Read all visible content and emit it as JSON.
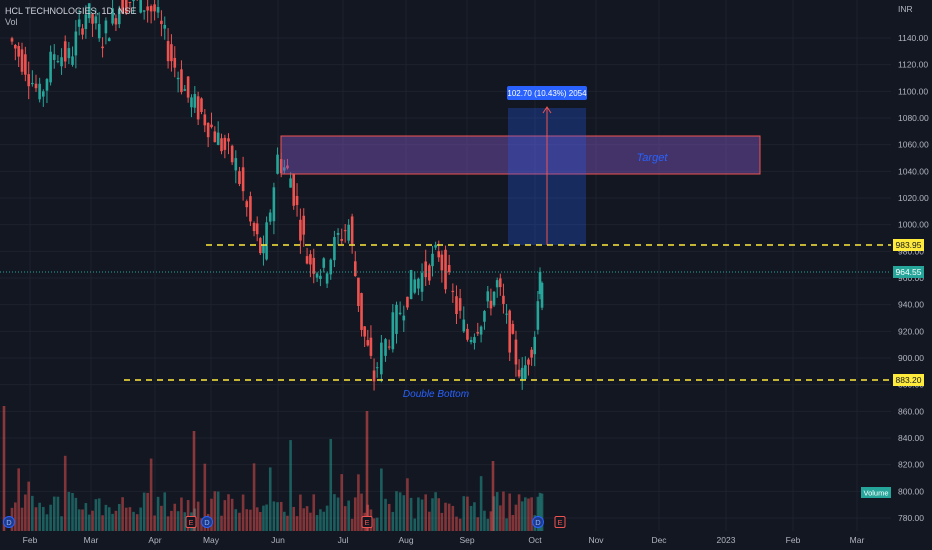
{
  "header": {
    "symbol": "HCL TECHNOLOGIES, 1D, NSE",
    "volume_label": "Vol",
    "currency": "INR"
  },
  "tags": {
    "resistance": "983.95",
    "last_price": "964.55",
    "support": "883.20",
    "volume": "Volume"
  },
  "annotations": {
    "target": "Target",
    "double_bottom": "Double Bottom",
    "measure": "102.70 (10.43%) 2054"
  },
  "event_markers": [
    "D",
    "E",
    "D",
    "E",
    "D",
    "E"
  ],
  "colors": {
    "background": "#131722",
    "up": "#26a69a",
    "down": "#ef5350",
    "dash_line": "#ffeb3b",
    "target_fill": "#7e57c2",
    "measure_fill": "#2962ff"
  },
  "chart_data": {
    "type": "candlestick",
    "title": "HCL TECHNOLOGIES, 1D, NSE",
    "y_unit": "INR",
    "x_ticks": [
      "Feb",
      "Mar",
      "Apr",
      "May",
      "Jun",
      "Jul",
      "Aug",
      "Sep",
      "Oct",
      "Nov",
      "Dec",
      "2023",
      "Feb",
      "Mar"
    ],
    "y_ticks": [
      780,
      800,
      820,
      840,
      860,
      880,
      900,
      920,
      940,
      960,
      980,
      1000,
      1020,
      1040,
      1060,
      1080,
      1100,
      1120,
      1140
    ],
    "ylim": [
      770,
      1165
    ],
    "horizontal_levels": [
      {
        "name": "resistance",
        "value": 983.95
      },
      {
        "name": "support",
        "value": 883.2
      },
      {
        "name": "last",
        "value": 964.55
      }
    ],
    "target_zone": {
      "low": 1038,
      "high": 1067,
      "label": "Target"
    },
    "measure": {
      "from": 983.95,
      "to": 1086.65,
      "change": "102.70 (10.43%)",
      "bars": 2054
    },
    "path_points": [
      {
        "date": "2022-01-24",
        "close": 1140
      },
      {
        "date": "2022-02-01",
        "close": 1120
      },
      {
        "date": "2022-02-08",
        "close": 1095
      },
      {
        "date": "2022-02-15",
        "close": 1130
      },
      {
        "date": "2022-02-22",
        "close": 1125
      },
      {
        "date": "2022-03-02",
        "close": 1160
      },
      {
        "date": "2022-03-10",
        "close": 1140
      },
      {
        "date": "2022-03-18",
        "close": 1165
      },
      {
        "date": "2022-03-25",
        "close": 1170
      },
      {
        "date": "2022-04-04",
        "close": 1160
      },
      {
        "date": "2022-04-12",
        "close": 1125
      },
      {
        "date": "2022-04-20",
        "close": 1095
      },
      {
        "date": "2022-04-28",
        "close": 1080
      },
      {
        "date": "2022-05-06",
        "close": 1060
      },
      {
        "date": "2022-05-13",
        "close": 1045
      },
      {
        "date": "2022-05-20",
        "close": 1000
      },
      {
        "date": "2022-05-26",
        "close": 975
      },
      {
        "date": "2022-06-02",
        "close": 1050
      },
      {
        "date": "2022-06-08",
        "close": 1035
      },
      {
        "date": "2022-06-16",
        "close": 975
      },
      {
        "date": "2022-06-24",
        "close": 965
      },
      {
        "date": "2022-07-01",
        "close": 990
      },
      {
        "date": "2022-07-06",
        "close": 1000
      },
      {
        "date": "2022-07-12",
        "close": 925
      },
      {
        "date": "2022-07-18",
        "close": 885
      },
      {
        "date": "2022-07-22",
        "close": 905
      },
      {
        "date": "2022-07-29",
        "close": 930
      },
      {
        "date": "2022-08-05",
        "close": 955
      },
      {
        "date": "2022-08-12",
        "close": 965
      },
      {
        "date": "2022-08-18",
        "close": 980
      },
      {
        "date": "2022-08-25",
        "close": 945
      },
      {
        "date": "2022-09-01",
        "close": 915
      },
      {
        "date": "2022-09-09",
        "close": 935
      },
      {
        "date": "2022-09-15",
        "close": 955
      },
      {
        "date": "2022-09-21",
        "close": 915
      },
      {
        "date": "2022-09-27",
        "close": 885
      },
      {
        "date": "2022-10-03",
        "close": 920
      },
      {
        "date": "2022-10-07",
        "close": 964.55
      }
    ]
  }
}
